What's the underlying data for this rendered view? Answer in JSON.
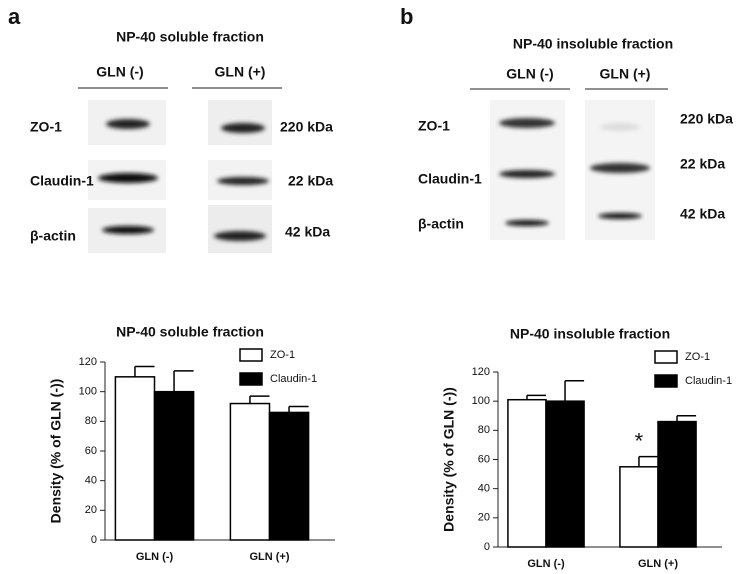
{
  "panels": [
    {
      "letter": "a",
      "title": "NP-40 soluble fraction",
      "lanes": [
        "GLN (-)",
        "GLN (+)"
      ],
      "rows": [
        {
          "label": "ZO-1",
          "size": "220 kDa"
        },
        {
          "label": "Claudin-1",
          "size": "22 kDa"
        },
        {
          "label": "β-actin",
          "size": "42 kDa"
        }
      ]
    },
    {
      "letter": "b",
      "title": "NP-40 insoluble fraction",
      "lanes": [
        "GLN (-)",
        "GLN (+)"
      ],
      "rows": [
        {
          "label": "ZO-1",
          "size": "220 kDa"
        },
        {
          "label": "Claudin-1",
          "size": "22 kDa"
        },
        {
          "label": "β-actin",
          "size": "42 kDa"
        }
      ]
    }
  ],
  "chart_data": [
    {
      "type": "bar",
      "title": "NP-40 soluble fraction",
      "y_label": "Density (% of GLN (-))",
      "categories": [
        "GLN (-)",
        "GLN (+)"
      ],
      "series": [
        {
          "name": "ZO-1",
          "color": "#ffffff",
          "values": [
            110,
            92
          ],
          "errors": [
            7,
            5
          ]
        },
        {
          "name": "Claudin-1",
          "color": "#000000",
          "values": [
            100,
            86
          ],
          "errors": [
            14,
            4
          ]
        }
      ],
      "ylim": [
        0,
        120
      ],
      "yticks": [
        0,
        20,
        40,
        60,
        80,
        100,
        120
      ]
    },
    {
      "type": "bar",
      "title": "NP-40 insoluble fraction",
      "y_label": "Density (% of GLN (-))",
      "categories": [
        "GLN (-)",
        "GLN (+)"
      ],
      "series": [
        {
          "name": "ZO-1",
          "color": "#ffffff",
          "values": [
            101,
            55
          ],
          "errors": [
            3,
            7
          ]
        },
        {
          "name": "Claudin-1",
          "color": "#000000",
          "values": [
            100,
            86
          ],
          "errors": [
            14,
            4
          ]
        }
      ],
      "ylim": [
        0,
        120
      ],
      "yticks": [
        0,
        20,
        40,
        60,
        80,
        100,
        120
      ],
      "annotations": [
        "*"
      ]
    }
  ]
}
